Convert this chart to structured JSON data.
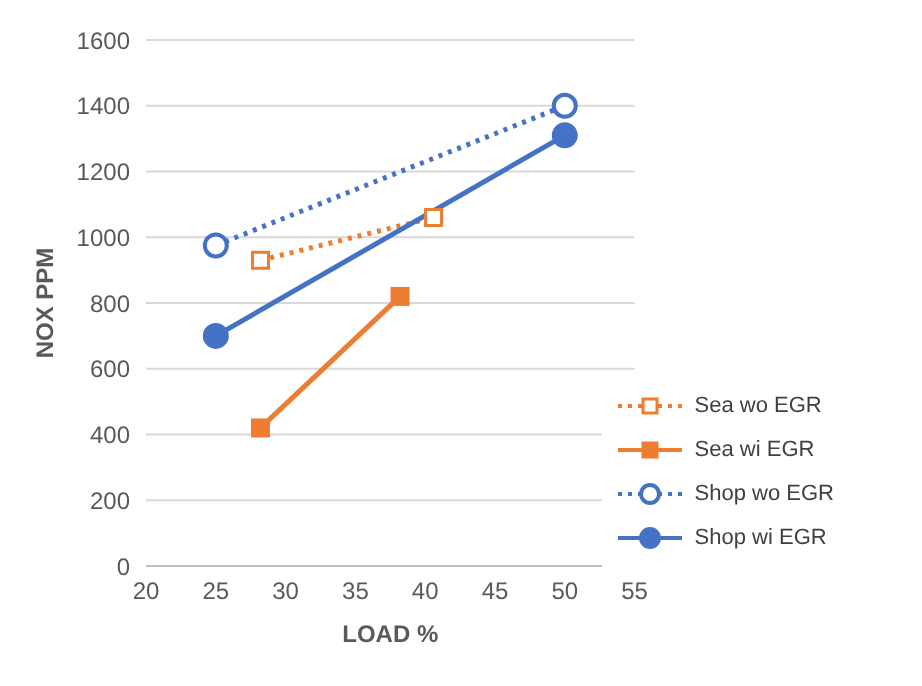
{
  "chart_data": {
    "type": "line",
    "xlabel": "LOAD %",
    "ylabel": "NOX    PPM",
    "xlim": [
      20,
      55
    ],
    "xticks": [
      20,
      25,
      30,
      35,
      40,
      45,
      50,
      55
    ],
    "ylim": [
      0,
      1600
    ],
    "yticks": [
      0,
      200,
      400,
      600,
      800,
      1000,
      1200,
      1400,
      1600
    ],
    "grid": "y",
    "legend": "right",
    "series": [
      {
        "name": "Sea wo EGR",
        "color": "#ed7d31",
        "x": [
          28.2,
          40.6
        ],
        "values": [
          930,
          1060
        ],
        "marker": "square",
        "line_style": "dotted"
      },
      {
        "name": "Sea wi EGR",
        "color": "#ed7d31",
        "x": [
          28.2,
          38.2
        ],
        "values": [
          420,
          820
        ],
        "marker": "square",
        "line_style": "solid"
      },
      {
        "name": "Shop wo EGR",
        "color": "#4472c4",
        "x": [
          25,
          50
        ],
        "values": [
          975,
          1400
        ],
        "marker": "circle",
        "line_style": "dotted"
      },
      {
        "name": "Shop wi EGR",
        "color": "#4472c4",
        "x": [
          25,
          50
        ],
        "values": [
          700,
          1310
        ],
        "marker": "circle",
        "line_style": "solid"
      }
    ]
  }
}
